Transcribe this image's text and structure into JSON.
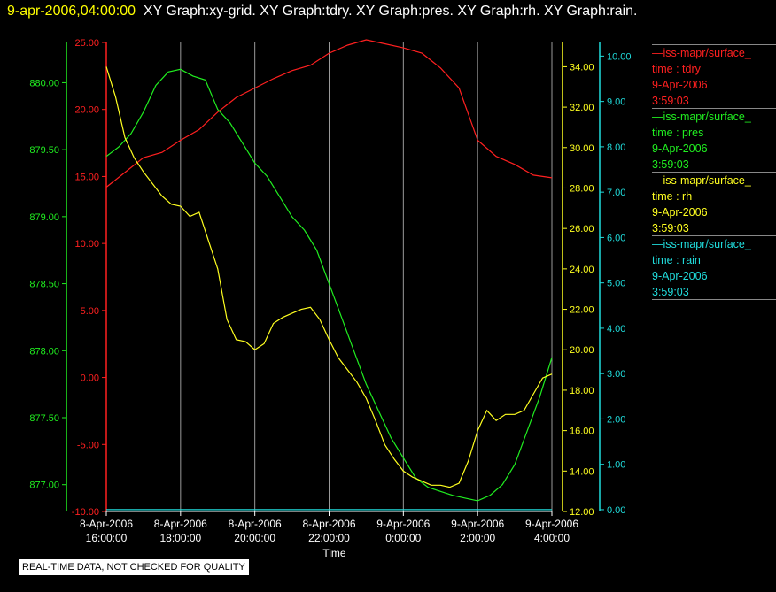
{
  "header": {
    "timestamp": "9-apr-2006,04:00:00",
    "graphs": "XY Graph:xy-grid.  XY Graph:tdry.  XY Graph:pres.  XY Graph:rh.  XY Graph:rain."
  },
  "legend": [
    {
      "source": "—iss-mapr/surface_",
      "var": "time : tdry",
      "date": "9-Apr-2006",
      "time": "3:59:03",
      "color": "#ff2020"
    },
    {
      "source": "—iss-mapr/surface_",
      "var": "time : pres",
      "date": "9-Apr-2006",
      "time": "3:59:03",
      "color": "#20ee20"
    },
    {
      "source": "—iss-mapr/surface_",
      "var": "time : rh",
      "date": "9-Apr-2006",
      "time": "3:59:03",
      "color": "#ffff20"
    },
    {
      "source": "—iss-mapr/surface_",
      "var": "time : rain",
      "date": "9-Apr-2006",
      "time": "3:59:03",
      "color": "#20dddd"
    }
  ],
  "disclaimer": "REAL-TIME DATA, NOT CHECKED FOR QUALITY",
  "chart_data": {
    "type": "line",
    "xlabel": "Time",
    "x_range": [
      "2006-04-08 16:00",
      "2006-04-09 04:00"
    ],
    "x_ticks": [
      {
        "date": "8-Apr-2006",
        "time": "16:00:00"
      },
      {
        "date": "8-Apr-2006",
        "time": "18:00:00"
      },
      {
        "date": "8-Apr-2006",
        "time": "20:00:00"
      },
      {
        "date": "8-Apr-2006",
        "time": "22:00:00"
      },
      {
        "date": "9-Apr-2006",
        "time": "0:00:00"
      },
      {
        "date": "9-Apr-2006",
        "time": "2:00:00"
      },
      {
        "date": "9-Apr-2006",
        "time": "4:00:00"
      }
    ],
    "grid": "vertical",
    "axes": [
      {
        "series": "tdry",
        "color": "#ff2020",
        "side": "left-outer",
        "range": [
          -10,
          25
        ],
        "ticks": [
          "-10.00",
          "-5.00",
          "0.00",
          "5.00",
          "10.00",
          "15.00",
          "20.00",
          "25.00"
        ]
      },
      {
        "series": "pres",
        "color": "#20ee20",
        "side": "left-inner",
        "range": [
          876.8,
          880.3
        ],
        "ticks": [
          "877.00",
          "877.50",
          "878.00",
          "878.50",
          "879.00",
          "879.50",
          "880.00"
        ]
      },
      {
        "series": "rh",
        "color": "#ffff20",
        "side": "right-inner",
        "range": [
          12,
          35.2
        ],
        "ticks": [
          "12.00",
          "14.00",
          "16.00",
          "18.00",
          "20.00",
          "22.00",
          "24.00",
          "26.00",
          "28.00",
          "30.00",
          "32.00",
          "34.00"
        ]
      },
      {
        "series": "rain",
        "color": "#20dddd",
        "side": "right-outer",
        "range": [
          -0.04,
          10.3
        ],
        "ticks": [
          "0.00",
          "1.00",
          "2.00",
          "3.00",
          "4.00",
          "5.00",
          "6.00",
          "7.00",
          "8.00",
          "9.00",
          "10.00"
        ]
      }
    ],
    "series": [
      {
        "name": "tdry",
        "color": "#ff2020",
        "x": [
          "2006-04-08 16:00",
          "2006-04-08 16:30",
          "2006-04-08 17:00",
          "2006-04-08 17:30",
          "2006-04-08 18:00",
          "2006-04-08 18:30",
          "2006-04-08 19:00",
          "2006-04-08 19:30",
          "2006-04-08 20:00",
          "2006-04-08 20:30",
          "2006-04-08 21:00",
          "2006-04-08 21:30",
          "2006-04-08 22:00",
          "2006-04-08 22:30",
          "2006-04-08 23:00",
          "2006-04-08 23:30",
          "2006-04-09 00:00",
          "2006-04-09 00:30",
          "2006-04-09 01:00",
          "2006-04-09 01:30",
          "2006-04-09 02:00",
          "2006-04-09 02:30",
          "2006-04-09 03:00",
          "2006-04-09 03:30",
          "2006-04-09 04:00"
        ],
        "y": [
          14.2,
          15.3,
          16.4,
          16.8,
          17.7,
          18.5,
          19.8,
          20.9,
          21.6,
          22.3,
          22.9,
          23.3,
          24.2,
          24.8,
          25.2,
          24.9,
          24.6,
          24.2,
          23.1,
          21.6,
          17.7,
          16.5,
          15.9,
          15.1,
          14.9
        ]
      },
      {
        "name": "pres",
        "color": "#20ee20",
        "x": [
          "2006-04-08 16:00",
          "2006-04-08 16:20",
          "2006-04-08 16:40",
          "2006-04-08 17:00",
          "2006-04-08 17:20",
          "2006-04-08 17:40",
          "2006-04-08 18:00",
          "2006-04-08 18:20",
          "2006-04-08 18:40",
          "2006-04-08 19:00",
          "2006-04-08 19:20",
          "2006-04-08 19:40",
          "2006-04-08 20:00",
          "2006-04-08 20:20",
          "2006-04-08 20:40",
          "2006-04-08 21:00",
          "2006-04-08 21:20",
          "2006-04-08 21:40",
          "2006-04-08 22:00",
          "2006-04-08 22:20",
          "2006-04-08 22:40",
          "2006-04-08 23:00",
          "2006-04-08 23:20",
          "2006-04-08 23:40",
          "2006-04-09 00:00",
          "2006-04-09 00:20",
          "2006-04-09 00:40",
          "2006-04-09 01:00",
          "2006-04-09 01:20",
          "2006-04-09 01:40",
          "2006-04-09 02:00",
          "2006-04-09 02:20",
          "2006-04-09 02:40",
          "2006-04-09 03:00",
          "2006-04-09 03:20",
          "2006-04-09 03:40",
          "2006-04-09 04:00"
        ],
        "y": [
          879.45,
          879.52,
          879.62,
          879.78,
          879.98,
          880.08,
          880.1,
          880.05,
          880.02,
          879.8,
          879.7,
          879.55,
          879.4,
          879.3,
          879.15,
          879.0,
          878.9,
          878.75,
          878.5,
          878.25,
          878.0,
          877.75,
          877.55,
          877.35,
          877.2,
          877.05,
          876.98,
          876.95,
          876.92,
          876.9,
          876.88,
          876.92,
          877.0,
          877.15,
          877.4,
          877.65,
          877.95
        ]
      },
      {
        "name": "rh",
        "color": "#ffff20",
        "x": [
          "2006-04-08 16:00",
          "2006-04-08 16:15",
          "2006-04-08 16:30",
          "2006-04-08 16:45",
          "2006-04-08 17:00",
          "2006-04-08 17:15",
          "2006-04-08 17:30",
          "2006-04-08 17:45",
          "2006-04-08 18:00",
          "2006-04-08 18:15",
          "2006-04-08 18:30",
          "2006-04-08 18:45",
          "2006-04-08 19:00",
          "2006-04-08 19:15",
          "2006-04-08 19:30",
          "2006-04-08 19:45",
          "2006-04-08 20:00",
          "2006-04-08 20:15",
          "2006-04-08 20:30",
          "2006-04-08 20:45",
          "2006-04-08 21:00",
          "2006-04-08 21:15",
          "2006-04-08 21:30",
          "2006-04-08 21:45",
          "2006-04-08 22:00",
          "2006-04-08 22:15",
          "2006-04-08 22:30",
          "2006-04-08 22:45",
          "2006-04-08 23:00",
          "2006-04-08 23:15",
          "2006-04-08 23:30",
          "2006-04-08 23:45",
          "2006-04-09 00:00",
          "2006-04-09 00:15",
          "2006-04-09 00:30",
          "2006-04-09 00:45",
          "2006-04-09 01:00",
          "2006-04-09 01:15",
          "2006-04-09 01:30",
          "2006-04-09 01:45",
          "2006-04-09 02:00",
          "2006-04-09 02:15",
          "2006-04-09 02:30",
          "2006-04-09 02:45",
          "2006-04-09 03:00",
          "2006-04-09 03:15",
          "2006-04-09 03:30",
          "2006-04-09 03:45",
          "2006-04-09 04:00"
        ],
        "y": [
          34.0,
          32.5,
          30.5,
          29.5,
          28.8,
          28.2,
          27.6,
          27.2,
          27.1,
          26.6,
          26.8,
          25.4,
          24.0,
          21.5,
          20.5,
          20.4,
          20.0,
          20.3,
          21.3,
          21.6,
          21.8,
          22.0,
          22.1,
          21.5,
          20.5,
          19.6,
          19.0,
          18.4,
          17.6,
          16.5,
          15.3,
          14.6,
          14.0,
          13.7,
          13.5,
          13.3,
          13.3,
          13.2,
          13.4,
          14.5,
          16.0,
          17.0,
          16.5,
          16.8,
          16.8,
          17.0,
          17.8,
          18.6,
          18.8
        ]
      },
      {
        "name": "rain",
        "color": "#20dddd",
        "x": [
          "2006-04-08 16:00",
          "2006-04-09 04:00"
        ],
        "y": [
          0.0,
          0.0
        ]
      }
    ]
  }
}
